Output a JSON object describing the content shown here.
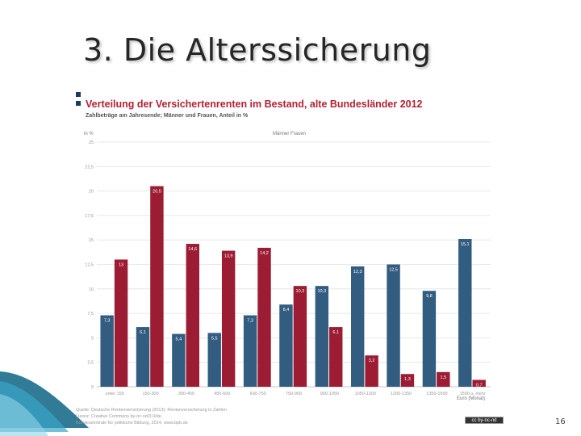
{
  "slide": {
    "title": "3. Die Alterssicherung",
    "page_number": "16"
  },
  "chart": {
    "title": "Verteilung der Versichertenrenten im Bestand, alte Bundesländer 2012",
    "subtitle": "Zahlbeträge am Jahresende; Männer und Frauen, Anteil in %",
    "unit_y": "in %",
    "legend": "Männer   Frauen",
    "unit_x": "Euro (Monat)"
  },
  "source_lines": [
    "Quelle: Deutsche Rentenversicherung (2013): Rentenversicherung in Zahlen",
    "Lizenz: Creative Commons by-nc-nd/3.0/de",
    "Bundeszentrale für politische Bildung, 2014, www.bpb.de"
  ],
  "badge": {
    "text": "cc by-nc-nd"
  },
  "colors": {
    "men": "#335c81",
    "women": "#9c1c34",
    "title_red": "#b22234"
  },
  "chart_data": {
    "type": "bar",
    "title": "Verteilung der Versichertenrenten im Bestand, alte Bundesländer 2012",
    "subtitle": "Zahlbeträge am Jahresende; Männer und Frauen, Anteil in %",
    "categories": [
      "unter 150",
      "150-300",
      "300-450",
      "450-600",
      "600-750",
      "750-900",
      "900-1050",
      "1050-1200",
      "1200-1350",
      "1350-1500",
      "1500 u. mehr"
    ],
    "series": [
      {
        "name": "Männer",
        "values": [
          7.3,
          6.1,
          5.4,
          5.5,
          7.3,
          8.4,
          10.3,
          12.3,
          12.5,
          9.8,
          15.1
        ]
      },
      {
        "name": "Frauen",
        "values": [
          13.0,
          20.5,
          14.6,
          13.9,
          14.2,
          10.3,
          6.1,
          3.2,
          1.3,
          1.5,
          0.7
        ]
      }
    ],
    "xlabel": "Euro (Monat)",
    "ylabel": "in %",
    "ylim": [
      0,
      25
    ],
    "yticks": [
      0,
      2.5,
      5,
      7.5,
      10,
      12.5,
      15,
      17.5,
      20,
      22.5,
      25
    ],
    "grid": true,
    "legend_position": "top-center"
  }
}
